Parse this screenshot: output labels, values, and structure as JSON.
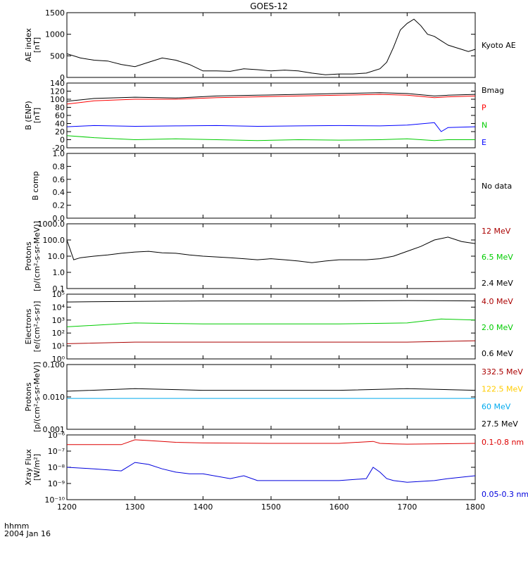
{
  "title": "GOES-12",
  "x_axis": {
    "ticks": [
      "1200",
      "1300",
      "1400",
      "1500",
      "1600",
      "1700",
      "1800"
    ],
    "range": [
      1200,
      1800
    ],
    "unit_label": "hhmm",
    "date_label": "2004 Jan 16"
  },
  "chart_data": [
    {
      "type": "line",
      "ylabel": "AE index",
      "yunit": "[nT]",
      "ylim": [
        0,
        1500
      ],
      "yticks": [
        "0",
        "500",
        "1000",
        "1500"
      ],
      "legend": [
        {
          "label": "Kyoto AE",
          "color": "#000000"
        }
      ],
      "series": [
        {
          "color": "#000000",
          "x": [
            1200,
            1220,
            1240,
            1260,
            1280,
            1300,
            1320,
            1340,
            1360,
            1380,
            1400,
            1420,
            1440,
            1460,
            1480,
            1500,
            1520,
            1540,
            1560,
            1580,
            1600,
            1620,
            1640,
            1660,
            1670,
            1680,
            1690,
            1700,
            1710,
            1720,
            1730,
            1740,
            1750,
            1760,
            1770,
            1780,
            1790,
            1800
          ],
          "y": [
            550,
            450,
            400,
            380,
            300,
            250,
            350,
            450,
            400,
            300,
            150,
            150,
            140,
            200,
            180,
            150,
            170,
            150,
            100,
            60,
            80,
            80,
            100,
            200,
            350,
            700,
            1100,
            1250,
            1350,
            1200,
            1000,
            950,
            850,
            750,
            700,
            650,
            600,
            650
          ]
        }
      ]
    },
    {
      "type": "line",
      "ylabel": "B (ENP)",
      "yunit": "[nT]",
      "ylim": [
        -20,
        140
      ],
      "yticks": [
        "-20",
        "0",
        "20",
        "40",
        "60",
        "80",
        "100",
        "120",
        "140"
      ],
      "legend": [
        {
          "label": "Bmag",
          "color": "#000000"
        },
        {
          "label": "P",
          "color": "#ff0000"
        },
        {
          "label": "N",
          "color": "#00cc00"
        },
        {
          "label": "E",
          "color": "#0000ff"
        }
      ],
      "series": [
        {
          "color": "#000000",
          "x": [
            1200,
            1240,
            1300,
            1360,
            1420,
            1480,
            1540,
            1600,
            1660,
            1700,
            1740,
            1760,
            1800
          ],
          "y": [
            95,
            102,
            105,
            103,
            108,
            110,
            112,
            114,
            116,
            114,
            108,
            110,
            112
          ]
        },
        {
          "color": "#ff0000",
          "x": [
            1200,
            1240,
            1300,
            1360,
            1420,
            1480,
            1540,
            1600,
            1660,
            1700,
            1740,
            1760,
            1800
          ],
          "y": [
            88,
            96,
            100,
            100,
            104,
            106,
            108,
            110,
            112,
            110,
            104,
            106,
            108
          ]
        },
        {
          "color": "#00cc00",
          "x": [
            1200,
            1240,
            1300,
            1360,
            1420,
            1480,
            1540,
            1600,
            1660,
            1700,
            1740,
            1760,
            1800
          ],
          "y": [
            10,
            5,
            0,
            2,
            0,
            -2,
            0,
            -1,
            0,
            2,
            -2,
            0,
            0
          ]
        },
        {
          "color": "#0000ff",
          "x": [
            1200,
            1240,
            1300,
            1360,
            1420,
            1480,
            1540,
            1600,
            1660,
            1700,
            1740,
            1750,
            1760,
            1800
          ],
          "y": [
            32,
            35,
            33,
            34,
            35,
            33,
            34,
            35,
            34,
            36,
            42,
            20,
            30,
            32
          ]
        }
      ]
    },
    {
      "type": "line",
      "ylabel": "B comp",
      "ylim": [
        0.0,
        1.0
      ],
      "yticks": [
        "0.0",
        "0.2",
        "0.4",
        "0.6",
        "0.8",
        "1.0"
      ],
      "legend": [
        {
          "label": "No data",
          "color": "#000000"
        }
      ],
      "series": []
    },
    {
      "type": "line",
      "ylabel": "Protons",
      "yunit": "[p/(cm²-s-sr-MeV)]",
      "ylim": [
        0.1,
        1000
      ],
      "log": true,
      "yticks": [
        "0.1",
        "1.0",
        "10.0",
        "100.0",
        "1000.0"
      ],
      "legend": [
        {
          "label": "12 MeV",
          "color": "#aa0000"
        },
        {
          "label": "6.5 MeV",
          "color": "#00cc00"
        },
        {
          "label": "2.4 MeV",
          "color": "#000000"
        }
      ],
      "series": [
        {
          "color": "#000000",
          "x": [
            1200,
            1210,
            1220,
            1240,
            1260,
            1280,
            1300,
            1320,
            1340,
            1360,
            1380,
            1400,
            1420,
            1440,
            1460,
            1480,
            1500,
            1520,
            1540,
            1560,
            1580,
            1600,
            1620,
            1640,
            1660,
            1680,
            1700,
            1720,
            1740,
            1760,
            1780,
            1800
          ],
          "y": [
            100,
            6,
            8,
            10,
            12,
            15,
            18,
            20,
            16,
            15,
            12,
            10,
            9,
            8,
            7,
            6,
            7,
            6,
            5,
            4,
            5,
            6,
            6,
            6,
            7,
            10,
            20,
            40,
            100,
            150,
            80,
            60
          ]
        }
      ]
    },
    {
      "type": "line",
      "ylabel": "Electrons",
      "yunit": "[e/(cm²-s-sr)]",
      "ylim": [
        1,
        100000
      ],
      "log": true,
      "yticks": [
        "10⁰",
        "10¹",
        "10²",
        "10³",
        "10⁴",
        "10⁵"
      ],
      "legend": [
        {
          "label": "4.0 MeV",
          "color": "#aa0000"
        },
        {
          "label": "2.0 MeV",
          "color": "#00cc00"
        },
        {
          "label": "0.6 MeV",
          "color": "#000000"
        }
      ],
      "series": [
        {
          "color": "#000000",
          "x": [
            1200,
            1300,
            1400,
            1500,
            1600,
            1700,
            1800
          ],
          "y": [
            25000,
            28000,
            30000,
            30000,
            30000,
            32000,
            30000
          ]
        },
        {
          "color": "#00cc00",
          "x": [
            1200,
            1300,
            1400,
            1500,
            1600,
            1700,
            1750,
            1800
          ],
          "y": [
            300,
            600,
            500,
            500,
            500,
            600,
            1200,
            1000
          ]
        },
        {
          "color": "#aa0000",
          "x": [
            1200,
            1300,
            1400,
            1500,
            1600,
            1700,
            1800
          ],
          "y": [
            15,
            20,
            20,
            20,
            20,
            20,
            25
          ]
        }
      ]
    },
    {
      "type": "line",
      "ylabel": "Protons",
      "yunit": "[p/(cm²-s-sr-MeV)]",
      "ylim": [
        0.001,
        0.1
      ],
      "log": true,
      "yticks": [
        "0.001",
        "0.010",
        "0.100"
      ],
      "legend": [
        {
          "label": "332.5 MeV",
          "color": "#aa0000"
        },
        {
          "label": "122.5 MeV",
          "color": "#ffcc00"
        },
        {
          "label": "60 MeV",
          "color": "#00aaee"
        },
        {
          "label": "27.5 MeV",
          "color": "#000000"
        }
      ],
      "series": [
        {
          "color": "#000000",
          "x": [
            1200,
            1300,
            1400,
            1500,
            1600,
            1700,
            1800
          ],
          "y": [
            0.015,
            0.018,
            0.016,
            0.016,
            0.016,
            0.018,
            0.016
          ]
        },
        {
          "color": "#00aaee",
          "x": [
            1200,
            1300,
            1400,
            1500,
            1600,
            1700,
            1800
          ],
          "y": [
            0.009,
            0.009,
            0.009,
            0.009,
            0.009,
            0.009,
            0.009
          ]
        }
      ]
    },
    {
      "type": "line",
      "ylabel": "Xray Flux",
      "yunit": "[W/m²]",
      "ylim": [
        1e-10,
        1e-06
      ],
      "log": true,
      "yticks": [
        "10⁻¹⁰",
        "10⁻⁹",
        "10⁻⁸",
        "10⁻⁷",
        "10⁻⁶"
      ],
      "legend": [
        {
          "label": "0.1-0.8 nm",
          "color": "#dd0000"
        },
        {
          "label": "0.05-0.3 nm",
          "color": "#0000dd"
        }
      ],
      "series": [
        {
          "color": "#dd0000",
          "x": [
            1200,
            1280,
            1300,
            1320,
            1360,
            1400,
            1500,
            1600,
            1650,
            1660,
            1680,
            1700,
            1800
          ],
          "y": [
            2.5e-07,
            2.5e-07,
            5e-07,
            4.5e-07,
            3.5e-07,
            3.2e-07,
            3e-07,
            3e-07,
            4e-07,
            3e-07,
            2.8e-07,
            2.7e-07,
            3e-07
          ]
        },
        {
          "color": "#0000dd",
          "x": [
            1200,
            1240,
            1280,
            1300,
            1320,
            1340,
            1360,
            1380,
            1400,
            1440,
            1460,
            1480,
            1500,
            1560,
            1600,
            1640,
            1650,
            1660,
            1670,
            1680,
            1700,
            1740,
            1760,
            1800
          ],
          "y": [
            1e-08,
            8e-09,
            6e-09,
            2e-08,
            1.5e-08,
            8e-09,
            5e-09,
            4e-09,
            4e-09,
            2e-09,
            3e-09,
            1.5e-09,
            1.5e-09,
            1.5e-09,
            1.5e-09,
            2e-09,
            1e-08,
            5e-09,
            2e-09,
            1.5e-09,
            1.2e-09,
            1.5e-09,
            2e-09,
            3e-09
          ]
        }
      ]
    }
  ]
}
